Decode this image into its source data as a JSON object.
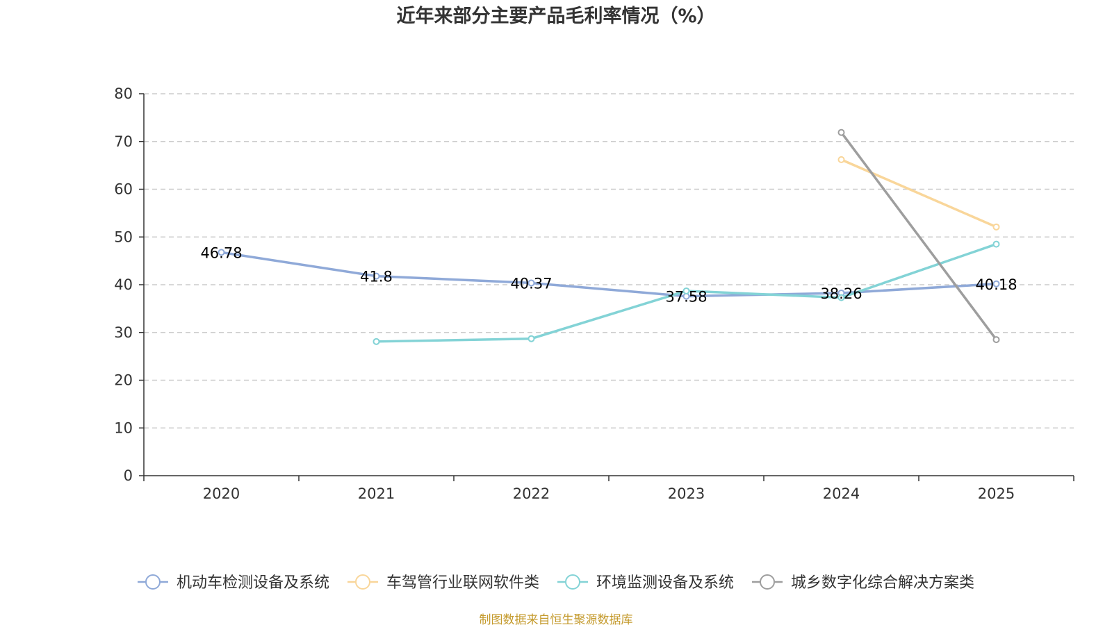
{
  "chart_data": {
    "type": "line",
    "title": "近年来部分主要产品毛利率情况（%）",
    "categories": [
      "2020",
      "2021",
      "2022",
      "2023",
      "2024",
      "2025"
    ],
    "ylim": [
      0,
      80
    ],
    "yticks": [
      0,
      10,
      20,
      30,
      40,
      50,
      60,
      70,
      80
    ],
    "ytick_labels": [
      "0",
      "10",
      "20",
      "30",
      "40",
      "50",
      "60",
      "70",
      "80"
    ],
    "grid": true,
    "legend_position": "bottom",
    "series": [
      {
        "name": "机动车检测设备及系统",
        "color": "#8fa9d8",
        "values": [
          46.78,
          41.8,
          40.37,
          37.58,
          38.26,
          40.18
        ],
        "labels": [
          "46.78",
          "41.8",
          "40.37",
          "37.58",
          "38.26",
          "40.18"
        ]
      },
      {
        "name": "车驾管行业联网软件类",
        "color": "#f9d69a",
        "values": [
          null,
          null,
          null,
          null,
          66.2,
          52.1
        ]
      },
      {
        "name": "环境监测设备及系统",
        "color": "#83d3d6",
        "values": [
          null,
          28.1,
          28.7,
          38.7,
          37.3,
          48.5
        ]
      },
      {
        "name": "城乡数字化综合解决方案类",
        "color": "#9e9e9e",
        "values": [
          null,
          null,
          null,
          null,
          71.9,
          28.5
        ]
      }
    ],
    "source": "制图数据来自恒生聚源数据库"
  }
}
